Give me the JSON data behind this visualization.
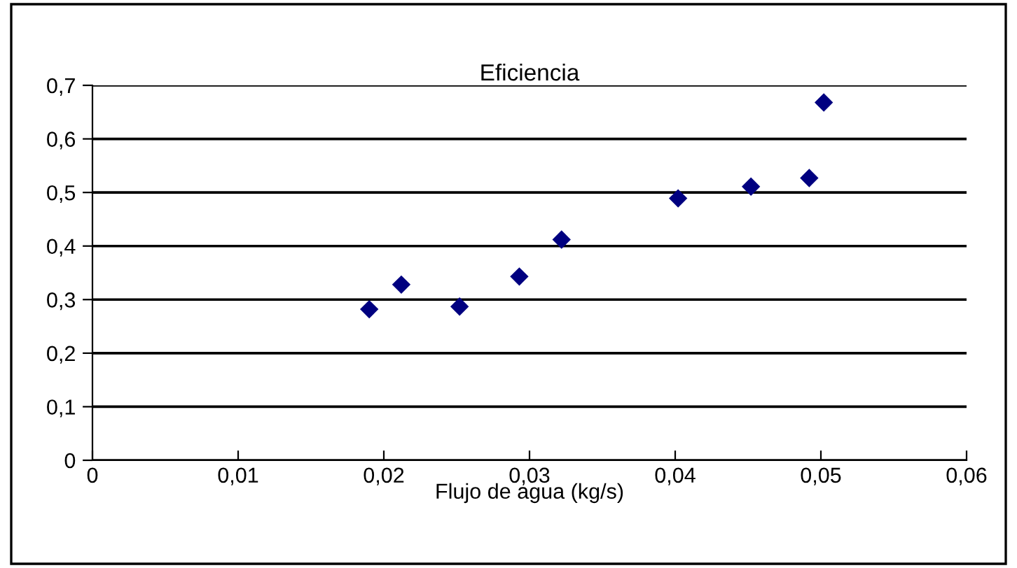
{
  "chart_data": {
    "type": "scatter",
    "title": "Eficiencia",
    "xlabel": "Flujo de agua (kg/s)",
    "x": [
      0.019,
      0.0212,
      0.0252,
      0.0293,
      0.0322,
      0.0402,
      0.0452,
      0.0492,
      0.0502
    ],
    "values": [
      0.282,
      0.328,
      0.287,
      0.343,
      0.412,
      0.489,
      0.511,
      0.527,
      0.668
    ],
    "color": "#000080",
    "marker": "diamond",
    "xlim": [
      0,
      0.06
    ],
    "ylim": [
      0,
      0.7
    ],
    "xticks": [
      0,
      {
        "value": 0.01,
        "label": "0,01"
      },
      {
        "value": 0.02,
        "label": "0,02"
      },
      {
        "value": 0.03,
        "label": "0,03"
      },
      {
        "value": 0.04,
        "label": "0,04"
      },
      {
        "value": 0.05,
        "label": "0,05"
      },
      {
        "value": 0.06,
        "label": "0,06"
      }
    ],
    "yticks": [
      0,
      {
        "value": 0.1,
        "label": "0,1"
      },
      {
        "value": 0.2,
        "label": "0,2"
      },
      {
        "value": 0.3,
        "label": "0,3"
      },
      {
        "value": 0.4,
        "label": "0,4"
      },
      {
        "value": 0.5,
        "label": "0,5"
      },
      {
        "value": 0.6,
        "label": "0,6"
      },
      {
        "value": 0.7,
        "label": "0,7"
      }
    ],
    "grid": "y",
    "legend": false
  }
}
